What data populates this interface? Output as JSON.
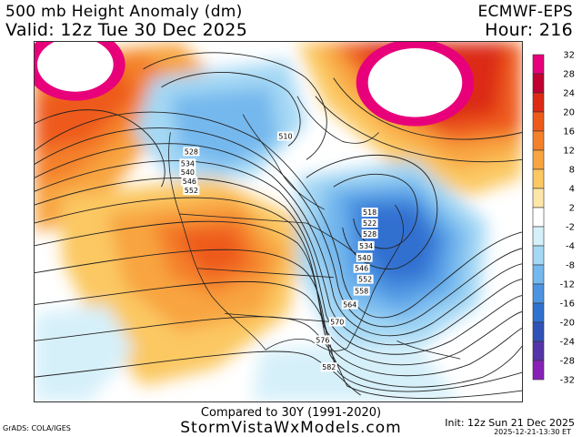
{
  "header": {
    "title": "500 mb Height Anomaly (dm)",
    "valid": "Valid: 12z Tue 30 Dec 2025",
    "model": "ECMWF-EPS",
    "hour": "Hour: 216"
  },
  "footer": {
    "compared": "Compared to 30Y (1991-2020)",
    "site": "StormVistaWxModels.com",
    "grads": "GrADS: COLA/IGES",
    "init": "Init: 12z Sun 21 Dec 2025",
    "timestamp": "2025-12-21-13:30 ET"
  },
  "colorbar": {
    "labels": [
      "32",
      "28",
      "24",
      "20",
      "16",
      "12",
      "8",
      "4",
      "2",
      "-2",
      "-4",
      "-8",
      "-12",
      "-16",
      "-20",
      "-24",
      "-28",
      "-32"
    ],
    "colors": [
      "#e8007a",
      "#c00030",
      "#dc2a14",
      "#ee5a1a",
      "#f4802a",
      "#f8a440",
      "#fbc862",
      "#fde7a8",
      "#ffffff",
      "#d6f0fa",
      "#a4d8f4",
      "#74b8ee",
      "#4c94e2",
      "#3070d0",
      "#3052b8",
      "#5434a8",
      "#8820b8"
    ]
  },
  "map": {
    "contour_labels": [
      "510",
      "528",
      "534",
      "540",
      "546",
      "552",
      "518",
      "522",
      "528",
      "534",
      "540",
      "546",
      "552",
      "558",
      "564",
      "570",
      "576",
      "582"
    ]
  }
}
